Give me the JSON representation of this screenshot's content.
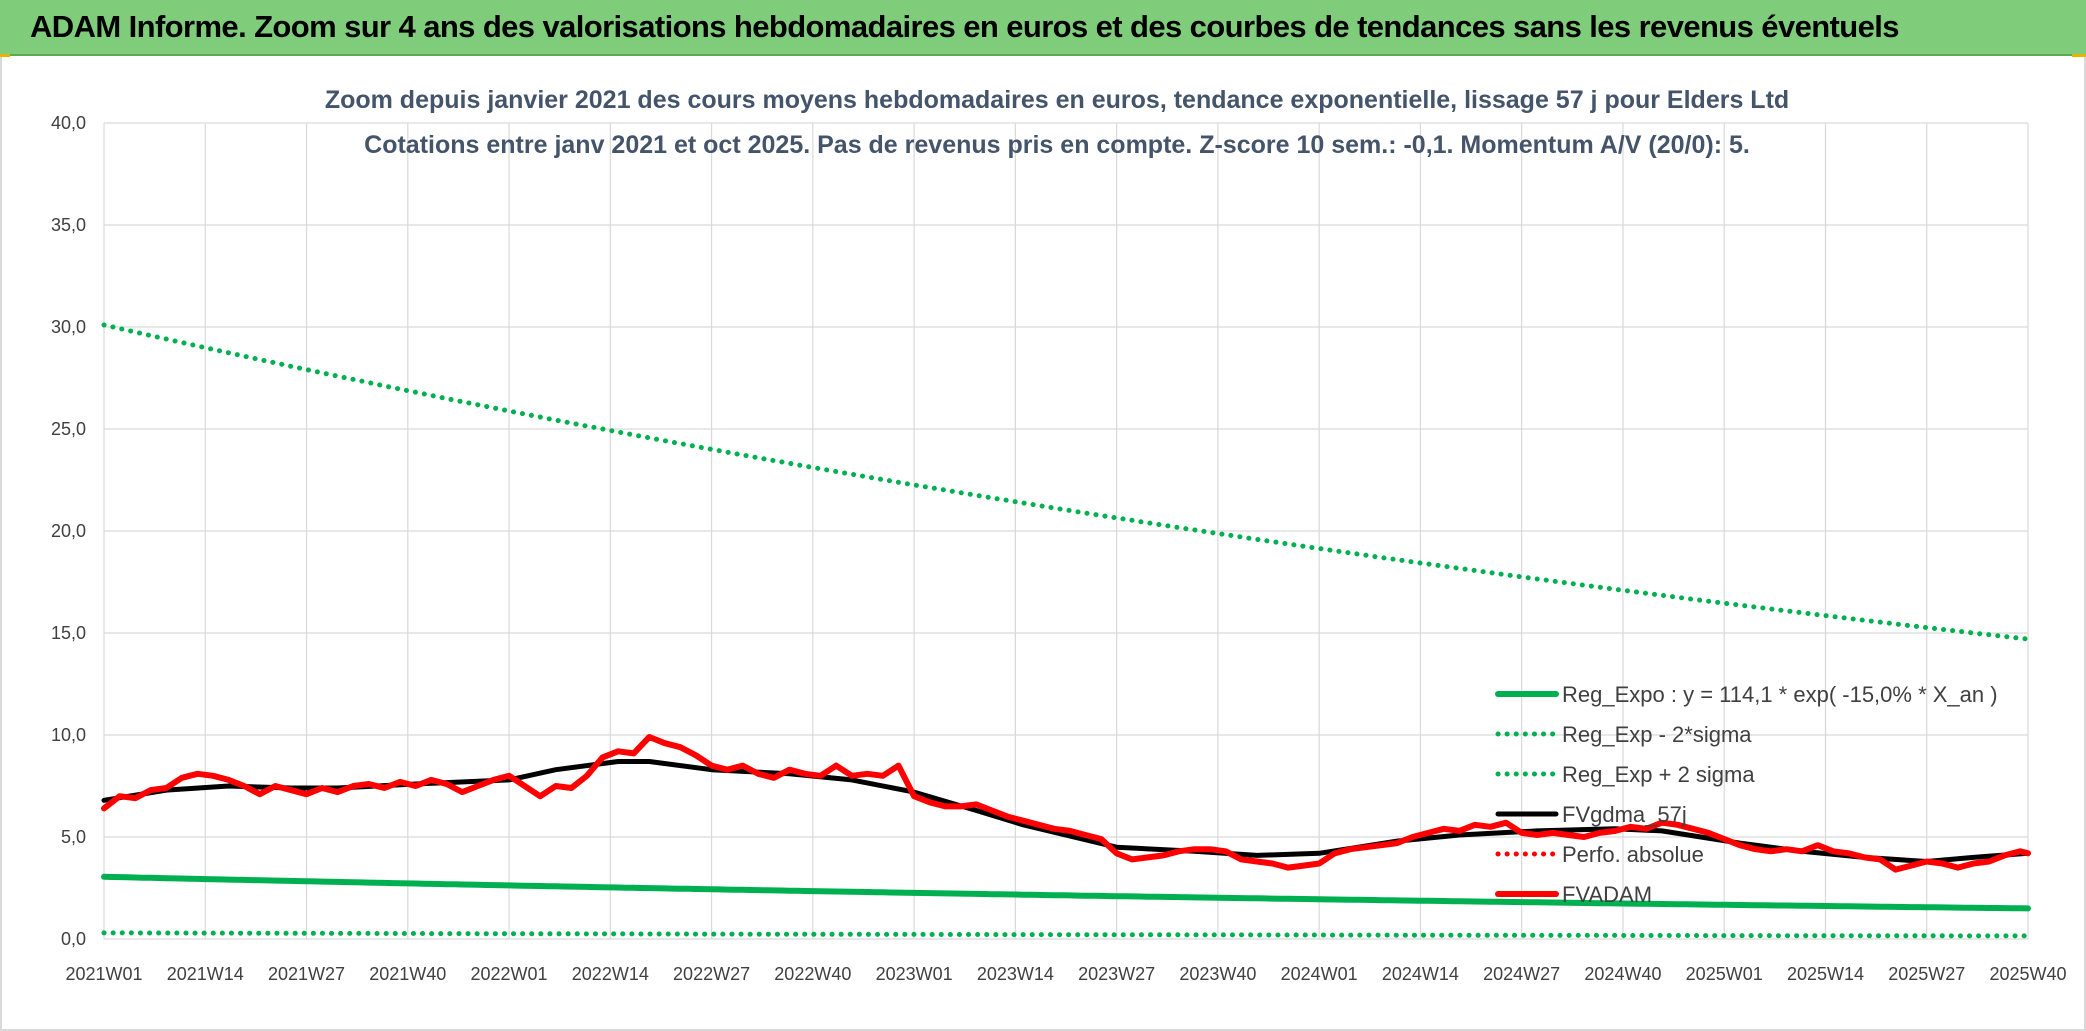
{
  "banner": {
    "title": "ADAM Informe. Zoom sur 4 ans des valorisations hebdomadaires en euros et des courbes de tendances sans les revenus éventuels"
  },
  "chart_data": {
    "type": "line",
    "title_line1": "Zoom depuis janvier 2021 des cours moyens hebdomadaires en euros, tendance exponentielle, lissage 57 j pour Elders Ltd",
    "title_line2": "Cotations entre janv 2021 et oct 2025. Pas de revenus pris en compte. Z-score 10 sem.: -0,1. Momentum A/V (20/0): 5.",
    "x_ticks": [
      "2021W01",
      "2021W14",
      "2021W27",
      "2021W40",
      "2022W01",
      "2022W14",
      "2022W27",
      "2022W40",
      "2023W01",
      "2023W14",
      "2023W27",
      "2023W40",
      "2024W01",
      "2024W14",
      "2024W27",
      "2024W40",
      "2025W01",
      "2025W14",
      "2025W27",
      "2025W40"
    ],
    "y_ticks": [
      "0,0",
      "5,0",
      "10,0",
      "15,0",
      "20,0",
      "25,0",
      "30,0",
      "35,0",
      "40,0"
    ],
    "ylim": [
      0,
      40
    ],
    "x_range_weeks": [
      0,
      247
    ],
    "grid": true,
    "legend_position": "right",
    "colors": {
      "reg_expo": "#00b050",
      "fvgdma": "#000000",
      "perfo": "#ff0000",
      "fvadam": "#ff0000",
      "grid": "#d9d9d9"
    },
    "series": [
      {
        "name": "Reg_Expo : y = 114,1 * exp( -15,0% *  X_an )",
        "style": "solid",
        "color": "#00b050",
        "width": 6,
        "x": [
          0,
          247
        ],
        "values": [
          3.05,
          1.5
        ],
        "curve": "exp"
      },
      {
        "name": "Reg_Exp - 2*sigma",
        "style": "dotted",
        "color": "#00b050",
        "width": 5,
        "x": [
          0,
          247
        ],
        "values": [
          0.3,
          0.15
        ],
        "curve": "exp"
      },
      {
        "name": "Reg_Exp + 2 sigma",
        "style": "dotted",
        "color": "#00b050",
        "width": 5,
        "x": [
          0,
          247
        ],
        "values": [
          30.1,
          14.7
        ],
        "curve": "exp"
      },
      {
        "name": "FVgdma_57j",
        "style": "solid",
        "color": "#000000",
        "width": 5,
        "x": [
          0,
          8,
          16,
          24,
          30,
          40,
          52,
          58,
          66,
          70,
          78,
          88,
          96,
          104,
          112,
          118,
          130,
          140,
          148,
          156,
          166,
          174,
          184,
          194,
          200,
          210,
          218,
          226,
          234,
          240,
          247
        ],
        "values": [
          6.8,
          7.3,
          7.5,
          7.4,
          7.4,
          7.6,
          7.8,
          8.3,
          8.7,
          8.7,
          8.3,
          8.1,
          7.8,
          7.2,
          6.3,
          5.6,
          4.5,
          4.3,
          4.1,
          4.2,
          4.8,
          5.1,
          5.3,
          5.4,
          5.3,
          4.7,
          4.3,
          4.0,
          3.8,
          4.0,
          4.2
        ]
      },
      {
        "name": "Perfo. absolue",
        "style": "dotted",
        "color": "#ff0000",
        "width": 4,
        "x": [],
        "values": []
      },
      {
        "name": "FVADAM",
        "style": "solid",
        "color": "#ff0000",
        "width": 6,
        "x": [
          0,
          2,
          4,
          6,
          8,
          10,
          12,
          14,
          16,
          18,
          20,
          22,
          24,
          26,
          28,
          30,
          32,
          34,
          36,
          38,
          40,
          42,
          44,
          46,
          48,
          50,
          52,
          54,
          56,
          58,
          60,
          62,
          64,
          66,
          68,
          70,
          72,
          74,
          76,
          78,
          80,
          82,
          84,
          86,
          88,
          90,
          92,
          94,
          96,
          98,
          100,
          102,
          104,
          106,
          108,
          110,
          112,
          114,
          116,
          118,
          120,
          122,
          124,
          126,
          128,
          130,
          132,
          134,
          136,
          138,
          140,
          142,
          144,
          146,
          148,
          150,
          152,
          154,
          156,
          158,
          160,
          162,
          164,
          166,
          168,
          170,
          172,
          174,
          176,
          178,
          180,
          182,
          184,
          186,
          188,
          190,
          192,
          194,
          196,
          198,
          200,
          202,
          204,
          206,
          208,
          210,
          212,
          214,
          216,
          218,
          220,
          222,
          224,
          226,
          228,
          230,
          232,
          234,
          236,
          238,
          240,
          242,
          244,
          246,
          247
        ],
        "values": [
          6.4,
          7.0,
          6.9,
          7.3,
          7.4,
          7.9,
          8.1,
          8.0,
          7.8,
          7.5,
          7.1,
          7.5,
          7.3,
          7.1,
          7.4,
          7.2,
          7.5,
          7.6,
          7.4,
          7.7,
          7.5,
          7.8,
          7.6,
          7.2,
          7.5,
          7.8,
          8.0,
          7.5,
          7.0,
          7.5,
          7.4,
          8.0,
          8.9,
          9.2,
          9.1,
          9.9,
          9.6,
          9.4,
          9.0,
          8.5,
          8.3,
          8.5,
          8.1,
          7.9,
          8.3,
          8.1,
          8.0,
          8.5,
          8.0,
          8.1,
          8.0,
          8.5,
          7.0,
          6.7,
          6.5,
          6.5,
          6.6,
          6.3,
          6.0,
          5.8,
          5.6,
          5.4,
          5.3,
          5.1,
          4.9,
          4.2,
          3.9,
          4.0,
          4.1,
          4.3,
          4.4,
          4.4,
          4.3,
          3.9,
          3.8,
          3.7,
          3.5,
          3.6,
          3.7,
          4.2,
          4.4,
          4.5,
          4.6,
          4.7,
          5.0,
          5.2,
          5.4,
          5.3,
          5.6,
          5.5,
          5.7,
          5.2,
          5.1,
          5.2,
          5.1,
          5.0,
          5.2,
          5.3,
          5.5,
          5.4,
          5.7,
          5.6,
          5.4,
          5.2,
          4.9,
          4.6,
          4.4,
          4.3,
          4.4,
          4.3,
          4.6,
          4.3,
          4.2,
          4.0,
          3.9,
          3.4,
          3.6,
          3.8,
          3.7,
          3.5,
          3.7,
          3.8,
          4.1,
          4.3,
          4.2
        ]
      }
    ]
  }
}
